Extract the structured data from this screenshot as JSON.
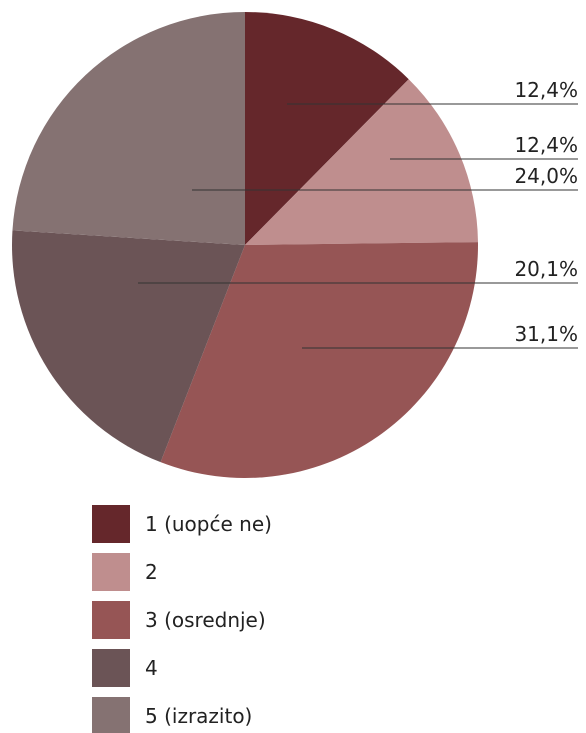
{
  "chart_data": {
    "type": "pie",
    "categories": [
      "1 (uopće ne)",
      "2",
      "3 (osrednje)",
      "4",
      "5 (izrazito)"
    ],
    "values": [
      12.4,
      12.4,
      31.1,
      20.1,
      24.0
    ],
    "value_labels": [
      "12,4%",
      "12,4%",
      "31,1%",
      "20,1%",
      "24,0%"
    ],
    "colors": [
      "#65272b",
      "#bf8e8e",
      "#965555",
      "#6b5456",
      "#857272"
    ],
    "legend": "bottom"
  }
}
